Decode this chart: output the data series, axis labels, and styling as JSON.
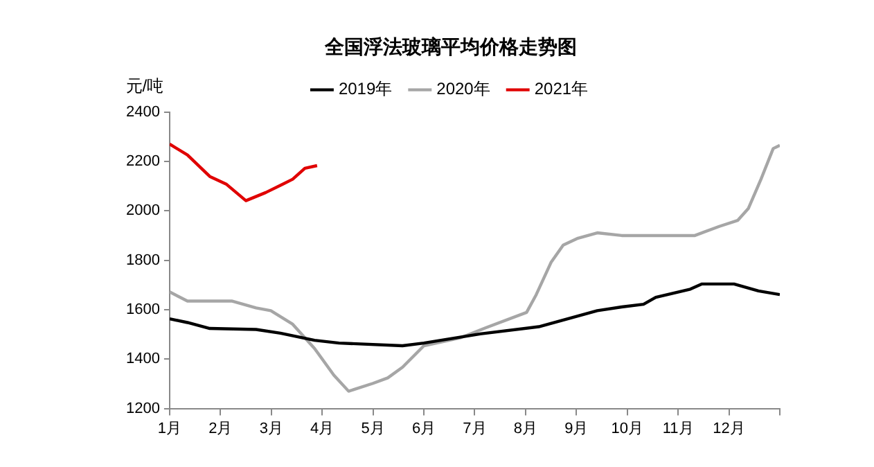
{
  "chart_data": {
    "type": "line",
    "title": "全国浮法玻璃平均价格走势图",
    "ylabel": "元/吨",
    "xlim": [
      1,
      13
    ],
    "xticks": [
      {
        "value": 1,
        "label": "1月"
      },
      {
        "value": 2,
        "label": "2月"
      },
      {
        "value": 3,
        "label": "3月"
      },
      {
        "value": 4,
        "label": "4月"
      },
      {
        "value": 5,
        "label": "5月"
      },
      {
        "value": 6,
        "label": "6月"
      },
      {
        "value": 7,
        "label": "7月"
      },
      {
        "value": 8,
        "label": "8月"
      },
      {
        "value": 9,
        "label": "9月"
      },
      {
        "value": 10,
        "label": "10月"
      },
      {
        "value": 11,
        "label": "11月"
      },
      {
        "value": 12,
        "label": "12月"
      },
      {
        "value": 13,
        "label": null
      }
    ],
    "ylim": [
      1200,
      2400
    ],
    "yticks": [
      1200,
      1400,
      1600,
      1800,
      2000,
      2200,
      2400
    ],
    "grid": false,
    "legend": "top",
    "marker": "none",
    "line_style": "solid",
    "series": [
      {
        "name": "2019年",
        "color": "#000000",
        "x": [
          1.0,
          1.35,
          1.79,
          2.7,
          3.18,
          3.85,
          4.33,
          5.58,
          6.0,
          7.11,
          8.26,
          9.41,
          9.89,
          10.32,
          10.56,
          11.24,
          11.47,
          12.1,
          12.58,
          13.0
        ],
        "values": [
          1563,
          1548,
          1524,
          1520,
          1505,
          1476,
          1465,
          1454,
          1465,
          1502,
          1531,
          1596,
          1611,
          1622,
          1650,
          1683,
          1704,
          1704,
          1676,
          1661
        ]
      },
      {
        "name": "2020年",
        "color": "#a6a6a6",
        "x": [
          1.0,
          1.35,
          2.22,
          2.7,
          2.99,
          3.42,
          3.85,
          4.23,
          4.52,
          5.0,
          5.29,
          5.58,
          6.0,
          6.73,
          7.21,
          8.02,
          8.21,
          8.5,
          8.74,
          9.03,
          9.41,
          9.89,
          11.33,
          11.81,
          12.17,
          12.38,
          12.63,
          12.87,
          13.0
        ],
        "values": [
          1672,
          1635,
          1635,
          1607,
          1596,
          1541,
          1443,
          1335,
          1270,
          1302,
          1324,
          1367,
          1454,
          1487,
          1526,
          1589,
          1661,
          1791,
          1861,
          1889,
          1911,
          1900,
          1900,
          1937,
          1961,
          2009,
          2128,
          2252,
          2265
        ]
      },
      {
        "name": "2021年",
        "color": "#e00000",
        "x": [
          1.0,
          1.35,
          1.79,
          2.12,
          2.5,
          2.89,
          3.22,
          3.42,
          3.66,
          3.9
        ],
        "values": [
          2270,
          2226,
          2139,
          2107,
          2041,
          2074,
          2107,
          2128,
          2172,
          2183
        ]
      }
    ]
  }
}
